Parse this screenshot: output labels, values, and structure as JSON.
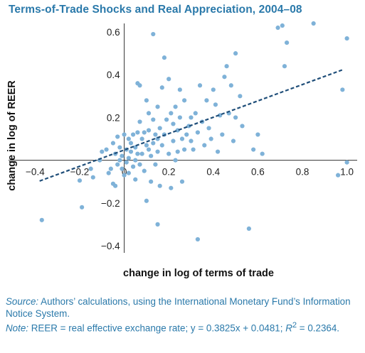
{
  "title": "Terms-of-Trade Shocks and Real Appreciation, 2004–08",
  "notes": {
    "source_label": "Source:",
    "source_text": "Authors’ calculations, using the International Monetary Fund’s Information Notice System.",
    "note_label": "Note:",
    "note_text_1": "REER = real effective exchange rate; y = 0.3825x + 0.0481; ",
    "r2_label": "R",
    "r2_exp": "2",
    "note_text_2": " = 0.2364."
  },
  "colors": {
    "title": "#2a79aa",
    "points": "#7fb2d8",
    "trend": "#1f4e79",
    "notes": "#2a79aa"
  },
  "chart_data": {
    "type": "scatter",
    "title": "Terms-of-Trade Shocks and Real Appreciation, 2004–08",
    "xlabel": "change in log of terms of trade",
    "ylabel": "change in log of REER",
    "xlim": [
      -0.43,
      1.03
    ],
    "ylim": [
      -0.44,
      0.65
    ],
    "xticks": [
      -0.4,
      -0.2,
      0,
      0.2,
      0.4,
      0.6,
      0.8,
      1.0
    ],
    "xtick_labels": [
      "−0.4",
      "−0.2",
      "0",
      "0.2",
      "0.4",
      "0.6",
      "0.8",
      "1.0"
    ],
    "yticks": [
      -0.4,
      -0.2,
      0.2,
      0.4,
      0.6
    ],
    "ytick_labels": [
      "−0.4",
      "−0.2",
      "0.2",
      "0.4",
      "0.6"
    ],
    "grid": false,
    "trendline": {
      "slope": 0.3825,
      "intercept": 0.0481,
      "x_range": [
        -0.38,
        0.98
      ],
      "style": "dashed"
    },
    "points": [
      [
        -0.37,
        -0.28
      ],
      [
        -0.19,
        -0.22
      ],
      [
        -0.2,
        -0.095
      ],
      [
        -0.15,
        -0.04
      ],
      [
        -0.14,
        -0.08
      ],
      [
        -0.11,
        0.0
      ],
      [
        -0.1,
        0.04
      ],
      [
        -0.08,
        0.05
      ],
      [
        -0.07,
        -0.06
      ],
      [
        -0.06,
        -0.04
      ],
      [
        -0.05,
        0.08
      ],
      [
        -0.05,
        -0.11
      ],
      [
        -0.04,
        -0.12
      ],
      [
        -0.04,
        0.03
      ],
      [
        -0.03,
        0.11
      ],
      [
        -0.03,
        -0.02
      ],
      [
        -0.02,
        0.0
      ],
      [
        -0.02,
        0.06
      ],
      [
        -0.01,
        0.02
      ],
      [
        -0.01,
        -0.04
      ],
      [
        0.0,
        0.12
      ],
      [
        0.0,
        -0.07
      ],
      [
        0.01,
        0.05
      ],
      [
        0.01,
        -0.01
      ],
      [
        0.02,
        0.1
      ],
      [
        0.02,
        0.01
      ],
      [
        0.02,
        -0.06
      ],
      [
        0.03,
        0.08
      ],
      [
        0.03,
        0.04
      ],
      [
        0.04,
        -0.03
      ],
      [
        0.04,
        0.12
      ],
      [
        0.05,
        0.0
      ],
      [
        0.05,
        0.06
      ],
      [
        0.05,
        -0.09
      ],
      [
        0.06,
        0.13
      ],
      [
        0.06,
        0.03
      ],
      [
        0.07,
        0.18
      ],
      [
        0.07,
        -0.02
      ],
      [
        0.07,
        0.35
      ],
      [
        0.08,
        0.1
      ],
      [
        0.08,
        0.03
      ],
      [
        0.09,
        0.13
      ],
      [
        0.09,
        -0.05
      ],
      [
        0.1,
        0.07
      ],
      [
        0.1,
        0.28
      ],
      [
        0.1,
        -0.19
      ],
      [
        0.11,
        0.14
      ],
      [
        0.11,
        0.05
      ],
      [
        0.12,
        0.02
      ],
      [
        0.12,
        -0.1
      ],
      [
        0.13,
        0.08
      ],
      [
        0.13,
        0.19
      ],
      [
        0.14,
        0.12
      ],
      [
        0.14,
        -0.02
      ],
      [
        0.15,
        0.1
      ],
      [
        0.15,
        0.25
      ],
      [
        0.15,
        0.04
      ],
      [
        0.16,
        0.15
      ],
      [
        0.16,
        -0.12
      ],
      [
        0.17,
        0.34
      ],
      [
        0.17,
        0.07
      ],
      [
        0.18,
        0.12
      ],
      [
        0.19,
        0.19
      ],
      [
        0.2,
        0.03
      ],
      [
        0.21,
        0.22
      ],
      [
        0.21,
        -0.13
      ],
      [
        0.22,
        0.17
      ],
      [
        0.22,
        0.09
      ],
      [
        0.23,
        0.25
      ],
      [
        0.23,
        0.0
      ],
      [
        0.24,
        0.14
      ],
      [
        0.24,
        0.04
      ],
      [
        0.25,
        0.2
      ],
      [
        0.26,
        0.1
      ],
      [
        0.26,
        -0.1
      ],
      [
        0.27,
        0.05
      ],
      [
        0.27,
        0.28
      ],
      [
        0.28,
        0.12
      ],
      [
        0.29,
        0.16
      ],
      [
        0.3,
        0.09
      ],
      [
        0.3,
        0.2
      ],
      [
        0.31,
        0.05
      ],
      [
        0.32,
        0.22
      ],
      [
        0.33,
        0.13
      ],
      [
        0.33,
        -0.37
      ],
      [
        0.34,
        0.35
      ],
      [
        0.35,
        0.18
      ],
      [
        0.36,
        0.07
      ],
      [
        0.37,
        0.28
      ],
      [
        0.38,
        0.15
      ],
      [
        0.39,
        0.1
      ],
      [
        0.4,
        0.33
      ],
      [
        0.41,
        0.26
      ],
      [
        0.42,
        0.04
      ],
      [
        0.43,
        0.21
      ],
      [
        0.44,
        0.12
      ],
      [
        0.45,
        0.39
      ],
      [
        0.46,
        0.44
      ],
      [
        0.47,
        0.22
      ],
      [
        0.48,
        0.35
      ],
      [
        0.49,
        0.09
      ],
      [
        0.5,
        0.5
      ],
      [
        0.5,
        0.2
      ],
      [
        0.52,
        0.3
      ],
      [
        0.53,
        0.16
      ],
      [
        0.56,
        -0.32
      ],
      [
        0.58,
        0.05
      ],
      [
        0.6,
        0.12
      ],
      [
        0.62,
        0.03
      ],
      [
        0.69,
        0.62
      ],
      [
        0.71,
        0.63
      ],
      [
        0.72,
        0.44
      ],
      [
        0.73,
        0.55
      ],
      [
        0.85,
        0.64
      ],
      [
        0.96,
        -0.07
      ],
      [
        0.98,
        0.33
      ],
      [
        1.0,
        0.57
      ],
      [
        1.0,
        -0.01
      ],
      [
        0.15,
        -0.3
      ],
      [
        0.06,
        0.36
      ],
      [
        0.2,
        0.38
      ],
      [
        0.18,
        0.48
      ],
      [
        0.13,
        0.59
      ],
      [
        0.25,
        0.33
      ],
      [
        0.11,
        0.22
      ]
    ]
  }
}
